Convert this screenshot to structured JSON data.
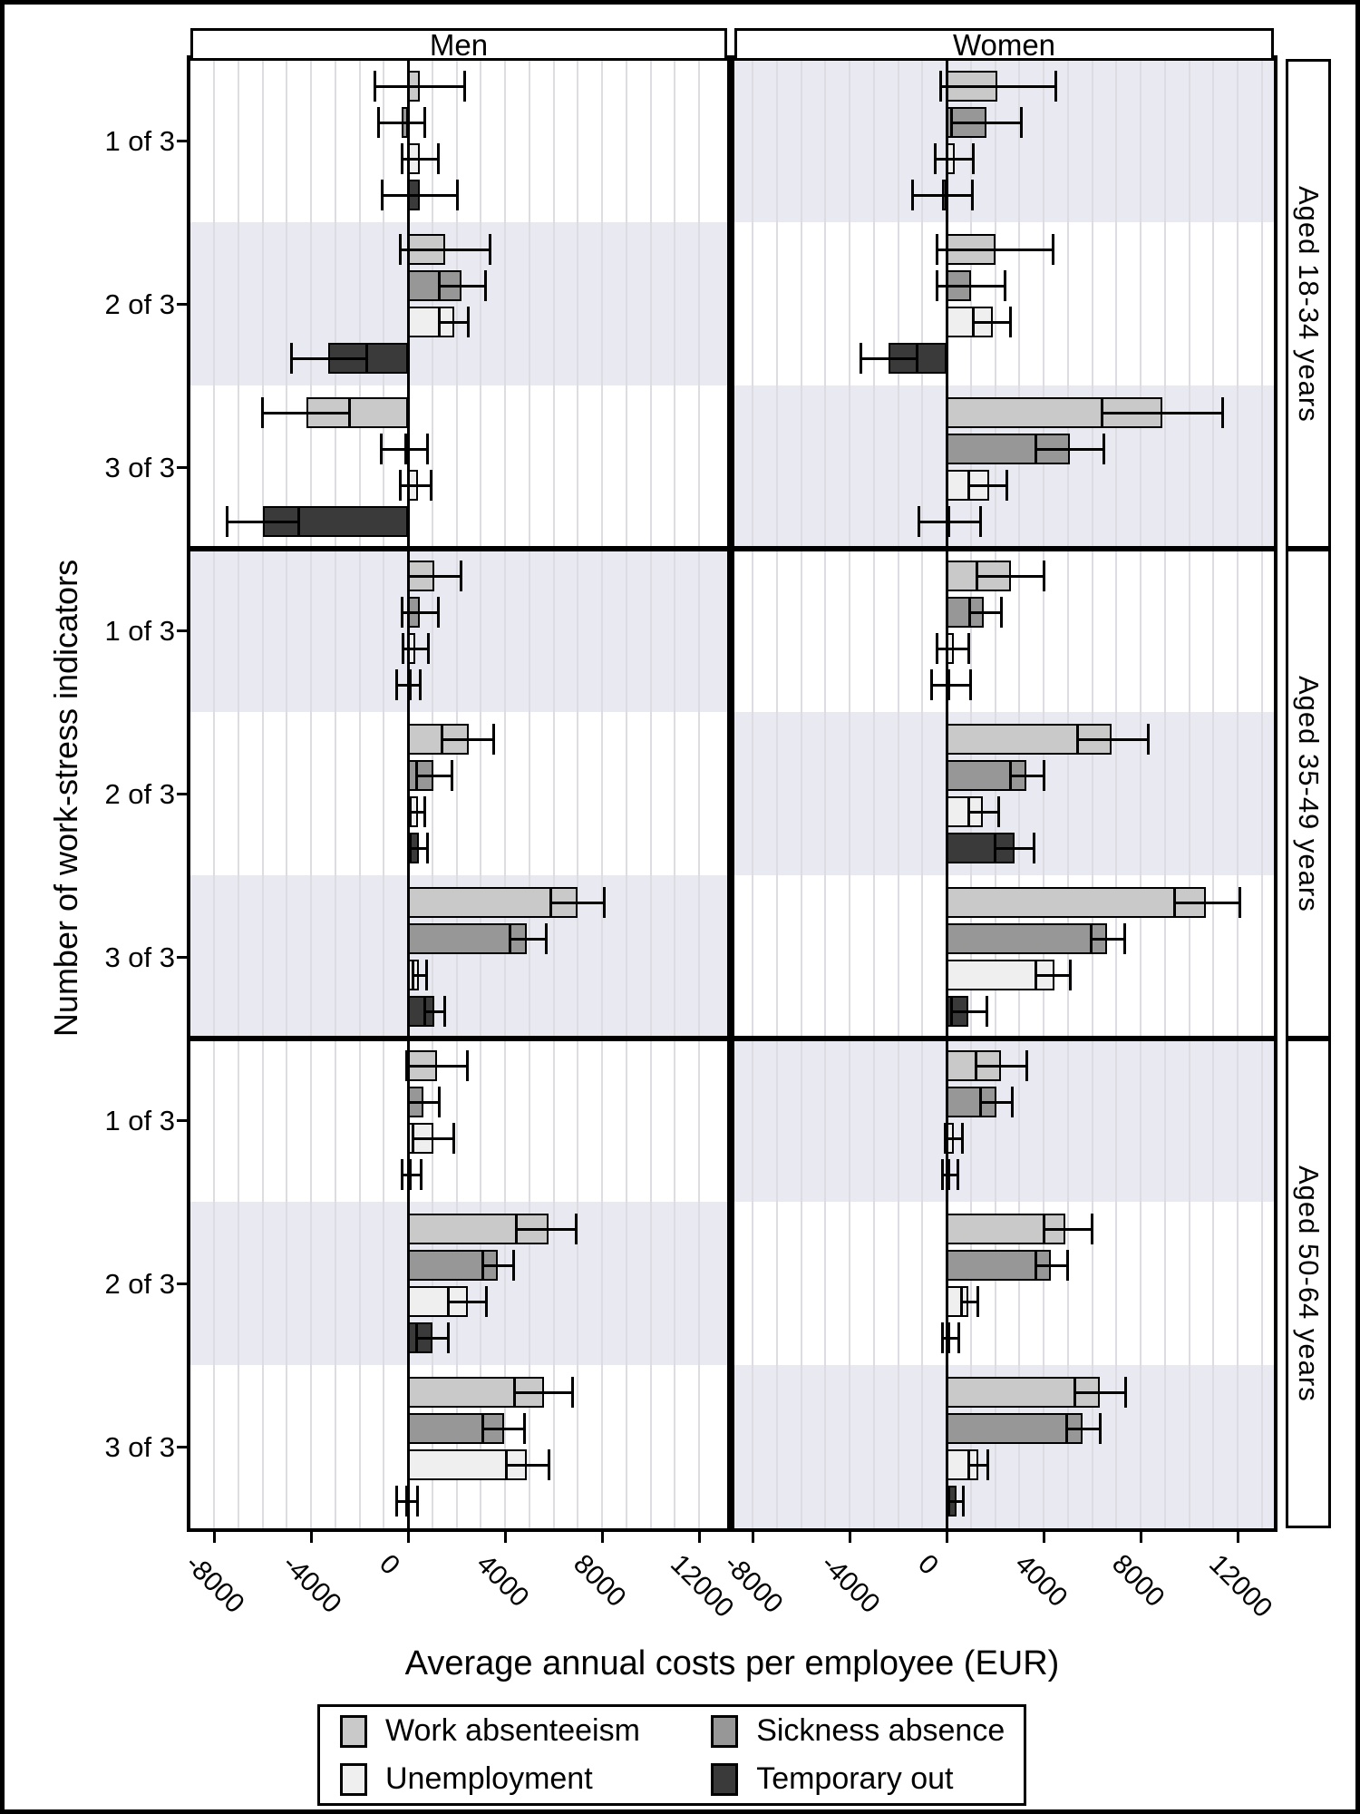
{
  "header": {
    "panels": [
      "Men",
      "Women"
    ]
  },
  "facet_labels": [
    "Aged 18-34 years",
    "Aged 35-49 years",
    "Aged 50-64 years"
  ],
  "y_axis": {
    "title": "Number of work-stress indicators",
    "groups": [
      "1 of 3",
      "2 of 3",
      "3 of 3"
    ]
  },
  "x_axis": {
    "title": "Average annual costs per employee (EUR)",
    "ticks": [
      "-8000",
      "-4000",
      "0",
      "4000",
      "8000",
      "12000"
    ]
  },
  "legend": {
    "items": [
      {
        "label": "Work absenteeism"
      },
      {
        "label": "Sickness absence"
      },
      {
        "label": "Unemployment"
      },
      {
        "label": "Temporary out"
      }
    ]
  },
  "chart_data": {
    "type": "bar",
    "orientation": "horizontal",
    "xlabel": "Average annual costs per employee (EUR)",
    "ylabel": "Number of work-stress indicators",
    "x_ticks": [
      -8000,
      -4000,
      0,
      4000,
      8000,
      12000
    ],
    "xlim": [
      -9000,
      13200
    ],
    "grid_step": 1000,
    "grid_on": true,
    "legend_position": "bottom",
    "panels": [
      "Men",
      "Women"
    ],
    "series": [
      {
        "name": "Work absenteeism",
        "color": "#c9c9c9"
      },
      {
        "name": "Sickness absence",
        "color": "#979797"
      },
      {
        "name": "Unemployment",
        "color": "#efefef"
      },
      {
        "name": "Temporary out",
        "color": "#3a3a3a"
      }
    ],
    "band_colors": {
      "even": "#ffffff",
      "odd": "#e9e9f1"
    },
    "error_bars": true,
    "value_format": "EUR, bars give point estimate, brackets give 95% CI [low, high]",
    "facets": [
      {
        "label": "Aged 18-34 years",
        "groups": [
          {
            "label": "1 of 3",
            "Men": [
              [
                500,
                -1350,
                2350
              ],
              [
                -250,
                -1200,
                700
              ],
              [
                500,
                -250,
                1250
              ],
              [
                500,
                -1050,
                2050
              ]
            ],
            "Women": [
              [
                2100,
                -250,
                4500
              ],
              [
                1650,
                200,
                3100
              ],
              [
                330,
                -450,
                1100
              ],
              [
                -200,
                -1400,
                1050
              ]
            ]
          },
          {
            "label": "2 of 3",
            "Men": [
              [
                1550,
                -300,
                3400
              ],
              [
                2200,
                1300,
                3200
              ],
              [
                1900,
                1300,
                2500
              ],
              [
                -3300,
                -4800,
                -1700
              ]
            ],
            "Women": [
              [
                2000,
                -400,
                4400
              ],
              [
                1000,
                -400,
                2400
              ],
              [
                1900,
                1100,
                2650
              ],
              [
                -2400,
                -3550,
                -1200
              ]
            ]
          },
          {
            "label": "3 of 3",
            "Men": [
              [
                -4200,
                -6000,
                -2400
              ],
              [
                -150,
                -1100,
                800
              ],
              [
                400,
                -300,
                950
              ],
              [
                -6000,
                -7450,
                -4500
              ]
            ],
            "Women": [
              [
                8900,
                6400,
                11400
              ],
              [
                5100,
                3700,
                6500
              ],
              [
                1750,
                900,
                2500
              ],
              [
                100,
                -1150,
                1400
              ]
            ]
          }
        ]
      },
      {
        "label": "Aged 35-49 years",
        "groups": [
          {
            "label": "1 of 3",
            "Men": [
              [
                1100,
                0,
                2200
              ],
              [
                500,
                -250,
                1250
              ],
              [
                300,
                -200,
                850
              ],
              [
                50,
                -450,
                500
              ]
            ],
            "Women": [
              [
                2650,
                1250,
                4000
              ],
              [
                1550,
                950,
                2250
              ],
              [
                300,
                -400,
                900
              ],
              [
                150,
                -600,
                1000
              ]
            ]
          },
          {
            "label": "2 of 3",
            "Men": [
              [
                2500,
                1400,
                3550
              ],
              [
                1050,
                350,
                1800
              ],
              [
                400,
                100,
                700
              ],
              [
                450,
                100,
                800
              ]
            ],
            "Women": [
              [
                6800,
                5400,
                8300
              ],
              [
                3300,
                2650,
                4000
              ],
              [
                1500,
                900,
                2150
              ],
              [
                2800,
                2000,
                3600
              ]
            ]
          },
          {
            "label": "3 of 3",
            "Men": [
              [
                7000,
                5900,
                8100
              ],
              [
                4900,
                4200,
                5700
              ],
              [
                450,
                200,
                750
              ],
              [
                1100,
                700,
                1500
              ]
            ],
            "Women": [
              [
                10700,
                9400,
                12100
              ],
              [
                6600,
                5950,
                7350
              ],
              [
                4450,
                3700,
                5100
              ],
              [
                900,
                200,
                1650
              ]
            ]
          }
        ]
      },
      {
        "label": "Aged 50-64 years",
        "groups": [
          {
            "label": "1 of 3",
            "Men": [
              [
                1200,
                -50,
                2450
              ],
              [
                650,
                0,
                1300
              ],
              [
                1050,
                200,
                1900
              ],
              [
                150,
                -250,
                550
              ]
            ],
            "Women": [
              [
                2250,
                1200,
                3300
              ],
              [
                2050,
                1400,
                2700
              ],
              [
                300,
                -50,
                650
              ],
              [
                150,
                -150,
                450
              ]
            ]
          },
          {
            "label": "2 of 3",
            "Men": [
              [
                5800,
                4450,
                6950
              ],
              [
                3700,
                3100,
                4350
              ],
              [
                2450,
                1650,
                3250
              ],
              [
                1000,
                350,
                1650
              ]
            ],
            "Women": [
              [
                4900,
                4000,
                6000
              ],
              [
                4300,
                3700,
                5000
              ],
              [
                900,
                600,
                1300
              ],
              [
                100,
                -150,
                500
              ]
            ]
          },
          {
            "label": "3 of 3",
            "Men": [
              [
                5600,
                4400,
                6800
              ],
              [
                3950,
                3100,
                4800
              ],
              [
                4900,
                4050,
                5800
              ],
              [
                -100,
                -450,
                400
              ]
            ],
            "Women": [
              [
                6300,
                5300,
                7400
              ],
              [
                5600,
                4950,
                6350
              ],
              [
                1300,
                900,
                1700
              ],
              [
                400,
                100,
                700
              ]
            ]
          }
        ]
      }
    ]
  }
}
